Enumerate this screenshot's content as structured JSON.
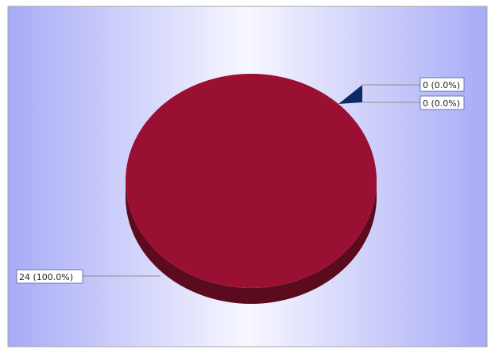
{
  "chart_data": {
    "type": "pie",
    "style": "3d",
    "slices": [
      {
        "value": 24,
        "label": "24 (100.0%)",
        "color": "#9a1032",
        "side_color": "#5c0a1e"
      },
      {
        "value": 0,
        "label": "0 (0.0%)",
        "color": "#0d2a66",
        "side_color": "#081a40"
      },
      {
        "value": 0,
        "label": "0 (0.0%)",
        "color": "#0d2a66",
        "side_color": "#081a40"
      }
    ],
    "colors": {
      "background_edge": "#a8abf6",
      "background_center": "#f7f7ff",
      "frame_border": "#a7a7a7",
      "label_border": "#6a78a8",
      "label_fill": "#ffffff",
      "leader_line": "#8f8f8f",
      "text": "#222222"
    }
  }
}
